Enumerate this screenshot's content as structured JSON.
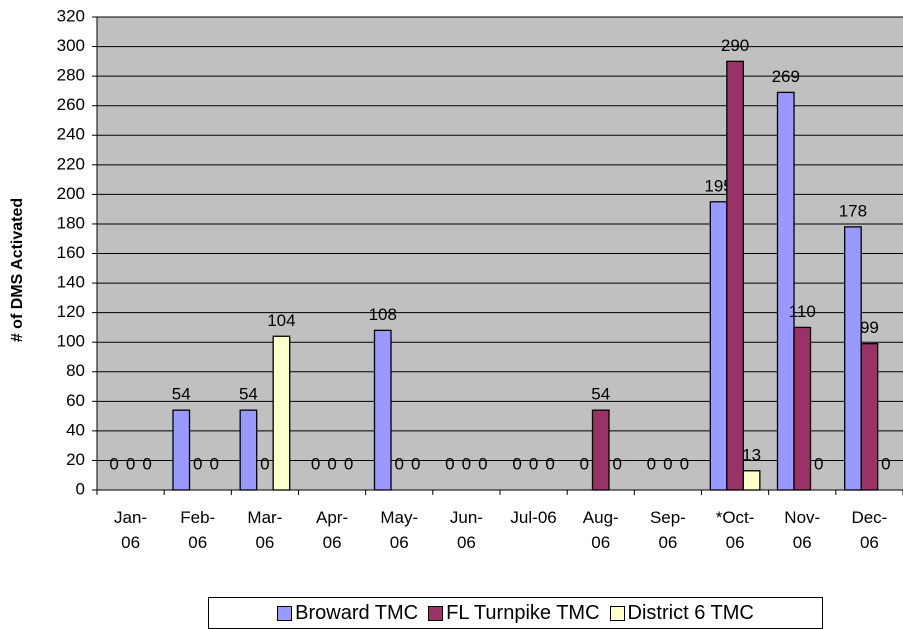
{
  "chart_data": {
    "type": "bar",
    "y_label": "# of DMS Activated",
    "categories": [
      "Jan-06",
      "Feb-06",
      "Mar-06",
      "Apr-06",
      "May-06",
      "Jun-06",
      "Jul-06",
      "Aug-06",
      "Sep-06",
      "*Oct-06",
      "Nov-06",
      "Dec-06"
    ],
    "series": [
      {
        "name": "Broward TMC",
        "color": "#9999ff",
        "values": [
          0,
          54,
          54,
          0,
          108,
          0,
          0,
          0,
          0,
          195,
          269,
          178
        ]
      },
      {
        "name": "FL Turnpike TMC",
        "color": "#993366",
        "values": [
          0,
          0,
          0,
          0,
          0,
          0,
          0,
          54,
          0,
          290,
          110,
          99
        ]
      },
      {
        "name": "District 6 TMC",
        "color": "#ffffcc",
        "values": [
          0,
          0,
          104,
          0,
          0,
          0,
          0,
          0,
          0,
          13,
          0,
          0
        ]
      }
    ],
    "ylim": [
      0,
      320
    ],
    "yticks": [
      0,
      20,
      40,
      60,
      80,
      100,
      120,
      140,
      160,
      180,
      200,
      220,
      240,
      260,
      280,
      300,
      320
    ],
    "grid": true,
    "plot_color": "#c0c0c0",
    "legend": "bottom"
  }
}
